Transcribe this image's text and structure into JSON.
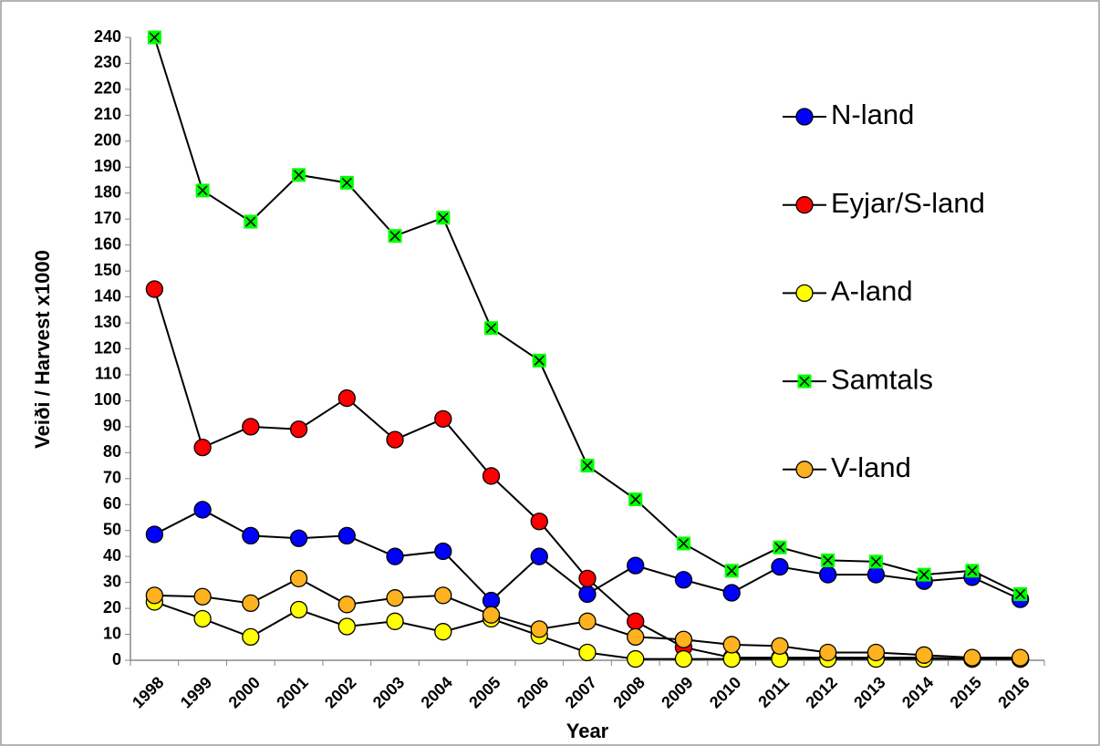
{
  "chart_data": {
    "type": "line",
    "y_label": "Veiði / Harvest x1000",
    "x_label": "Year",
    "categories": [
      "1998",
      "1999",
      "2000",
      "2001",
      "2002",
      "2003",
      "2004",
      "2005",
      "2006",
      "2007",
      "2008",
      "2009",
      "2010",
      "2011",
      "2012",
      "2013",
      "2014",
      "2015",
      "2016"
    ],
    "series": [
      {
        "name": "N-land",
        "color": "#0000ff",
        "marker": "circle",
        "values": [
          48.5,
          58,
          48,
          47,
          48,
          40,
          42,
          23,
          40,
          25.5,
          36.5,
          31,
          26,
          36,
          33,
          33,
          30.5,
          32,
          23.5
        ]
      },
      {
        "name": "Eyjar/S-land",
        "color": "#ff0000",
        "marker": "circle",
        "values": [
          143,
          82,
          90,
          89,
          101,
          85,
          93,
          71,
          53.5,
          31.5,
          15,
          5,
          1,
          1,
          1,
          1,
          1,
          0.5,
          0.5
        ]
      },
      {
        "name": "A-land",
        "color": "#ffff00",
        "marker": "circle",
        "values": [
          22.5,
          16,
          9,
          19.5,
          13,
          15,
          11,
          16,
          9.5,
          3,
          0.5,
          0.5,
          0.5,
          0.5,
          0.5,
          0.5,
          0.5,
          0.5,
          0.5
        ]
      },
      {
        "name": "Samtals",
        "color": "#00ff00",
        "marker": "x-square",
        "values": [
          240,
          181,
          169,
          187,
          184,
          163.5,
          170.5,
          128,
          115.5,
          75,
          62,
          45,
          34.5,
          43.5,
          38.5,
          38,
          33,
          34.5,
          25.5
        ]
      },
      {
        "name": "V-land",
        "color": "#ffb21f",
        "marker": "circle",
        "values": [
          25,
          24.5,
          22,
          31.5,
          21.5,
          24,
          25,
          17.5,
          12,
          15,
          9,
          8,
          6,
          5.5,
          3,
          3,
          2,
          1,
          1
        ]
      }
    ],
    "ylim": [
      0,
      240
    ],
    "yticks": [
      0,
      10,
      20,
      30,
      40,
      50,
      60,
      70,
      80,
      90,
      100,
      110,
      120,
      130,
      140,
      150,
      160,
      170,
      180,
      190,
      200,
      210,
      220,
      230,
      240
    ],
    "grid": false,
    "legend": "right"
  }
}
